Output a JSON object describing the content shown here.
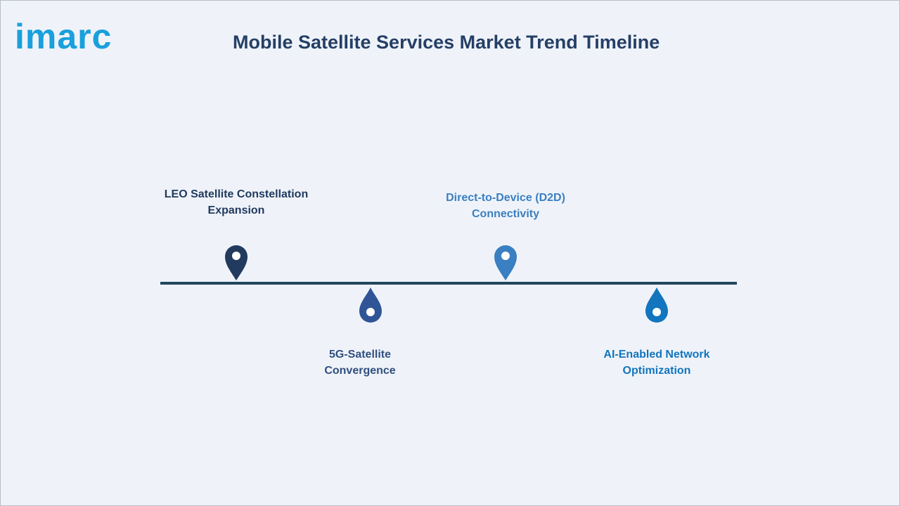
{
  "logo": "imarc",
  "title": "Mobile Satellite Services Market Trend Timeline",
  "nodes": [
    {
      "label": "LEO Satellite Constellation Expansion"
    },
    {
      "label": "5G-Satellite Convergence"
    },
    {
      "label": "Direct-to-Device (D2D) Connectivity"
    },
    {
      "label": "AI-Enabled Network Optimization"
    }
  ]
}
